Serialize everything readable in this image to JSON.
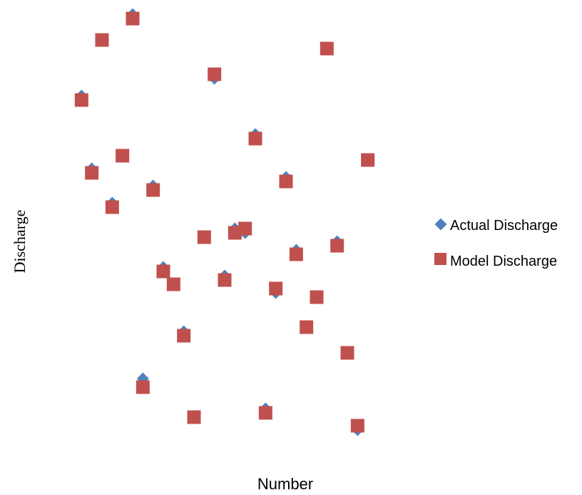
{
  "chart_data": {
    "type": "scatter",
    "title": "",
    "xlabel": "Number",
    "ylabel": "Discharge",
    "x": [
      1,
      2,
      3,
      4,
      5,
      6,
      7,
      8,
      9,
      10,
      11,
      12,
      13,
      14,
      15,
      16,
      17,
      18,
      19,
      20,
      21,
      22,
      23,
      24,
      25,
      26,
      27,
      28,
      29
    ],
    "series": [
      {
        "name": "Actual Discharge",
        "color": "#4F81BD",
        "marker": "diamond",
        "values": [
          0.8,
          0.63,
          0.93,
          0.55,
          0.66,
          0.99,
          0.14,
          0.59,
          0.4,
          0.36,
          0.25,
          0.05,
          0.47,
          0.84,
          0.38,
          0.49,
          0.48,
          0.71,
          0.07,
          0.34,
          0.61,
          0.44,
          0.26,
          0.33,
          0.91,
          0.46,
          0.2,
          0.02,
          0.65
        ]
      },
      {
        "name": "Model Discharge",
        "color": "#C0504D",
        "marker": "square",
        "values": [
          0.79,
          0.62,
          0.93,
          0.54,
          0.66,
          0.98,
          0.12,
          0.58,
          0.39,
          0.36,
          0.24,
          0.05,
          0.47,
          0.85,
          0.37,
          0.48,
          0.49,
          0.7,
          0.06,
          0.35,
          0.6,
          0.43,
          0.26,
          0.33,
          0.91,
          0.45,
          0.2,
          0.03,
          0.65
        ]
      }
    ],
    "xlim": [
      0,
      30
    ],
    "ylim": [
      0,
      1
    ],
    "grid": false,
    "axes_visible": false,
    "legend_position": "right"
  }
}
